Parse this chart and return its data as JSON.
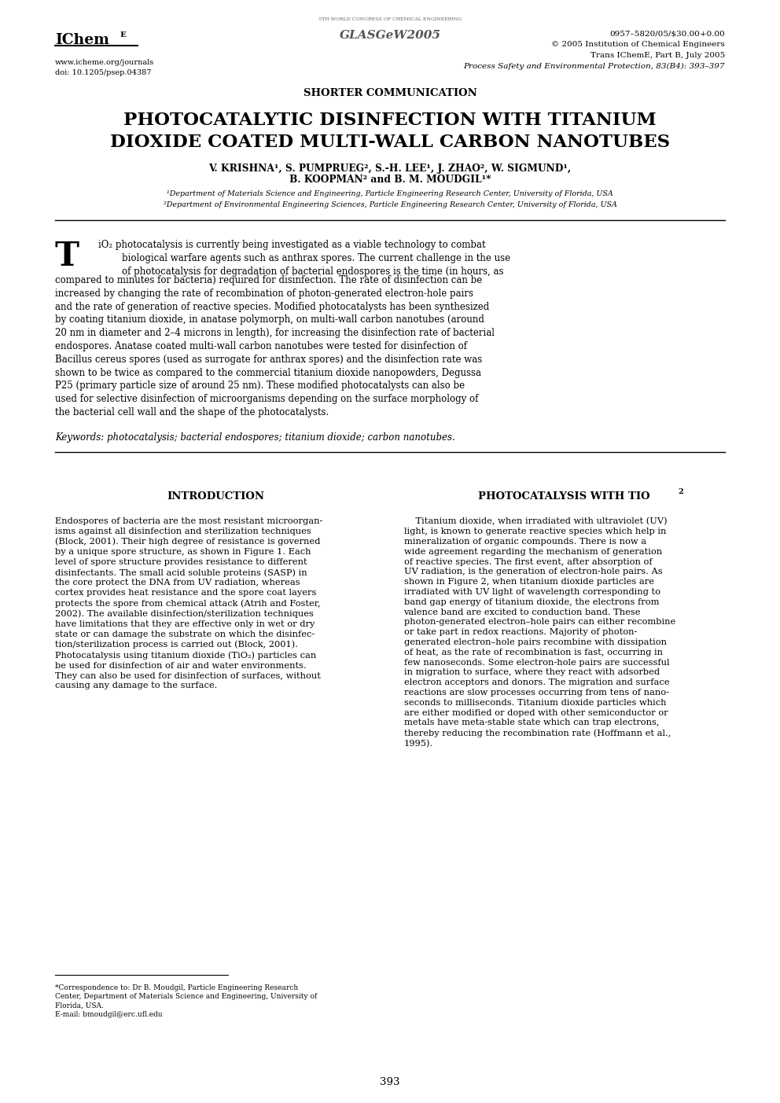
{
  "bg_color": "#ffffff",
  "text_color": "#000000",
  "page_width": 9.92,
  "page_height": 14.03,
  "header_left_logo_main": "IChem",
  "header_left_logo_sup": "E",
  "header_left_url": "www.icheme.org/journals",
  "header_left_doi": "doi: 10.1205/psep.04387",
  "header_center_small": "5TH WORLD CONGRESS OF CHEMICAL ENGINEERING",
  "header_center_big": "GLASGeW2005",
  "header_right_line1": "0957–5820/05/$30.00+0.00",
  "header_right_line2": "© 2005 Institution of Chemical Engineers",
  "header_right_line3": "Trans IChemE, Part B, July 2005",
  "header_right_line4": "Process Safety and Environmental Protection, 83(B4): 393–397",
  "section_label": "SHORTER COMMUNICATION",
  "title_line1": "PHOTOCATALYTIC DISINFECTION WITH TITANIUM",
  "title_line2": "DIOXIDE COATED MULTI-WALL CARBON NANOTUBES",
  "authors_line1": "V. KRISHNA¹, S. PUMPRUEG², S.-H. LEE¹, J. ZHAO², W. SIGMUND¹,",
  "authors_line2": "B. KOOPMAN² and B. M. MOUDGIL¹*",
  "affil1": "¹Department of Materials Science and Engineering, Particle Engineering Research Center, University of Florida, USA",
  "affil2": "²Department of Environmental Engineering Sciences, Particle Engineering Research Center, University of Florida, USA",
  "keywords": "Keywords: photocatalysis; bacterial endospores; titanium dioxide; carbon nanotubes.",
  "intro_heading": "INTRODUCTION",
  "photo_heading_main": "PHOTOCATALYSIS WITH TIO",
  "photo_heading_sub": "2",
  "footnote_line1": "*Correspondence to: Dr B. Moudgil, Particle Engineering Research",
  "footnote_line2": "Center, Department of Materials Science and Engineering, University of",
  "footnote_line3": "Florida, USA.",
  "footnote_line4": "E-mail: bmoudgil@erc.ufl.edu",
  "page_number": "393",
  "abstract_first3": "iO₂ photocatalysis is currently being investigated as a viable technology to combat\n        biological warfare agents such as anthrax spores. The current challenge in the use\n        of photocatalysis for degradation of bacterial endospores is the time (in hours, as",
  "abstract_rest": "compared to minutes for bacteria) required for disinfection. The rate of disinfection can be\nincreased by changing the rate of recombination of photon-generated electron-hole pairs\nand the rate of generation of reactive species. Modified photocatalysts has been synthesized\nby coating titanium dioxide, in anatase polymorph, on multi-wall carbon nanotubes (around\n20 nm in diameter and 2–4 microns in length), for increasing the disinfection rate of bacterial\nendospores. Anatase coated multi-wall carbon nanotubes were tested for disinfection of\nBacillus cereus spores (used as surrogate for anthrax spores) and the disinfection rate was\nshown to be twice as compared to the commercial titanium dioxide nanopowders, Degussa\nP25 (primary particle size of around 25 nm). These modified photocatalysts can also be\nused for selective disinfection of microorganisms depending on the surface morphology of\nthe bacterial cell wall and the shape of the photocatalysts.",
  "intro_text": "Endospores of bacteria are the most resistant microorgan-\nisms against all disinfection and sterilization techniques\n(Block, 2001). Their high degree of resistance is governed\nby a unique spore structure, as shown in Figure 1. Each\nlevel of spore structure provides resistance to different\ndisinfectants. The small acid soluble proteins (SASP) in\nthe core protect the DNA from UV radiation, whereas\ncortex provides heat resistance and the spore coat layers\nprotects the spore from chemical attack (Atrih and Foster,\n2002). The available disinfection/sterilization techniques\nhave limitations that they are effective only in wet or dry\nstate or can damage the substrate on which the disinfec-\ntion/sterilization process is carried out (Block, 2001).\nPhotocatalysis using titanium dioxide (TiO₂) particles can\nbe used for disinfection of air and water environments.\nThey can also be used for disinfection of surfaces, without\ncausing any damage to the surface.",
  "photo_text": "    Titanium dioxide, when irradiated with ultraviolet (UV)\nlight, is known to generate reactive species which help in\nmineralization of organic compounds. There is now a\nwide agreement regarding the mechanism of generation\nof reactive species. The first event, after absorption of\nUV radiation, is the generation of electron-hole pairs. As\nshown in Figure 2, when titanium dioxide particles are\nirradiated with UV light of wavelength corresponding to\nband gap energy of titanium dioxide, the electrons from\nvalence band are excited to conduction band. These\nphoton-generated electron–hole pairs can either recombine\nor take part in redox reactions. Majority of photon-\ngenerated electron–hole pairs recombine with dissipation\nof heat, as the rate of recombination is fast, occurring in\nfew nanoseconds. Some electron-hole pairs are successful\nin migration to surface, where they react with adsorbed\nelectron acceptors and donors. The migration and surface\nreactions are slow processes occurring from tens of nano-\nseconds to milliseconds. Titanium dioxide particles which\nare either modified or doped with other semiconductor or\nmetals have meta-stable state which can trap electrons,\nthereby reducing the recombination rate (Hoffmann et al.,\n1995)."
}
